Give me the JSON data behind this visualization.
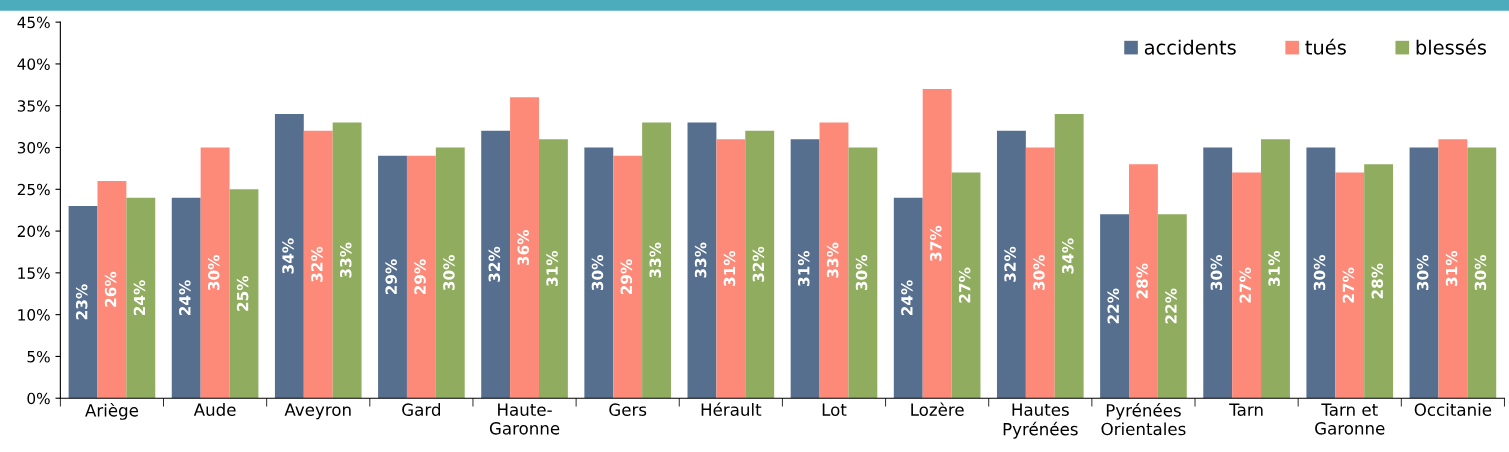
{
  "chart_data": {
    "type": "bar",
    "categories": [
      "Ariège",
      "Aude",
      "Aveyron",
      "Gard",
      "Haute-\nGaronne",
      "Gers",
      "Hérault",
      "Lot",
      "Lozère",
      "Hautes\nPyrénées",
      "Pyrénées\nOrientales",
      "Tarn",
      "Tarn et\nGaronne",
      "Occitanie"
    ],
    "series": [
      {
        "name": "accidents",
        "color": "#566f8f",
        "values": [
          23,
          24,
          34,
          29,
          32,
          30,
          33,
          31,
          24,
          32,
          22,
          30,
          30,
          30
        ],
        "value_labels": [
          "23%",
          "24%",
          "34%",
          "29%",
          "32%",
          "30%",
          "33%",
          "31%",
          "24%",
          "32%",
          "22%",
          "30%",
          "30%",
          "30%"
        ]
      },
      {
        "name": "tués",
        "color": "#fd8a78",
        "values": [
          26,
          30,
          32,
          29,
          36,
          29,
          31,
          33,
          37,
          30,
          28,
          27,
          27,
          31
        ],
        "value_labels": [
          "26%",
          "30%",
          "32%",
          "29%",
          "36%",
          "29%",
          "31%",
          "33%",
          "37%",
          "30%",
          "28%",
          "27%",
          "27%",
          "31%"
        ]
      },
      {
        "name": "blessés",
        "color": "#8fac5f",
        "values": [
          24,
          25,
          33,
          30,
          31,
          33,
          32,
          30,
          27,
          34,
          22,
          31,
          28,
          30
        ],
        "value_labels": [
          "24%",
          "25%",
          "33%",
          "30%",
          "31%",
          "33%",
          "32%",
          "30%",
          "27%",
          "34%",
          "22%",
          "31%",
          "28%",
          "30%"
        ]
      }
    ],
    "ylim": [
      0,
      45
    ],
    "yticks": [
      {
        "value": 0,
        "label": "0%"
      },
      {
        "value": 5,
        "label": "5%"
      },
      {
        "value": 10,
        "label": "10%"
      },
      {
        "value": 15,
        "label": "15%"
      },
      {
        "value": 20,
        "label": "20%"
      },
      {
        "value": 25,
        "label": "25%"
      },
      {
        "value": 30,
        "label": "30%"
      },
      {
        "value": 35,
        "label": "35%"
      },
      {
        "value": 40,
        "label": "40%"
      },
      {
        "value": 45,
        "label": "45%"
      }
    ],
    "grid": false,
    "legend": "top right"
  }
}
